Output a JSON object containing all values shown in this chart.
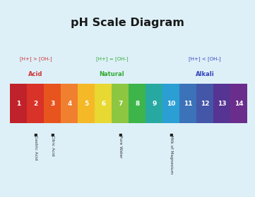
{
  "title": "pH Scale Diagram",
  "background_color": "#ddf0f8",
  "bar_colors": [
    "#c0222b",
    "#d93228",
    "#e8541e",
    "#f08030",
    "#f5b927",
    "#e8d832",
    "#8dc641",
    "#3db54a",
    "#27a9a2",
    "#2b9fd4",
    "#3b72b9",
    "#4456a8",
    "#563494",
    "#6b2d8b"
  ],
  "ph_values": [
    1,
    2,
    3,
    4,
    5,
    6,
    7,
    8,
    9,
    10,
    11,
    12,
    13,
    14
  ],
  "acid_label1": "[H+] > [OH-]",
  "acid_label2": "Acid",
  "acid_color1": "#cc3333",
  "acid_color2": "#cc3333",
  "neutral_label1": "[H+] = [OH-]",
  "neutral_label2": "Natural",
  "neutral_color1": "#33aa33",
  "neutral_color2": "#33aa33",
  "alkali_label1": "[H+] < [OH-]",
  "alkali_label2": "Alkali",
  "alkali_color1": "#3344bb",
  "alkali_color2": "#3344bb",
  "annotations": [
    {
      "label": "Gastric Acid",
      "ph": 2
    },
    {
      "label": "Citric Acid",
      "ph": 3
    },
    {
      "label": "Pure Water",
      "ph": 7
    },
    {
      "label": "Milk of Magnesium",
      "ph": 10
    }
  ]
}
